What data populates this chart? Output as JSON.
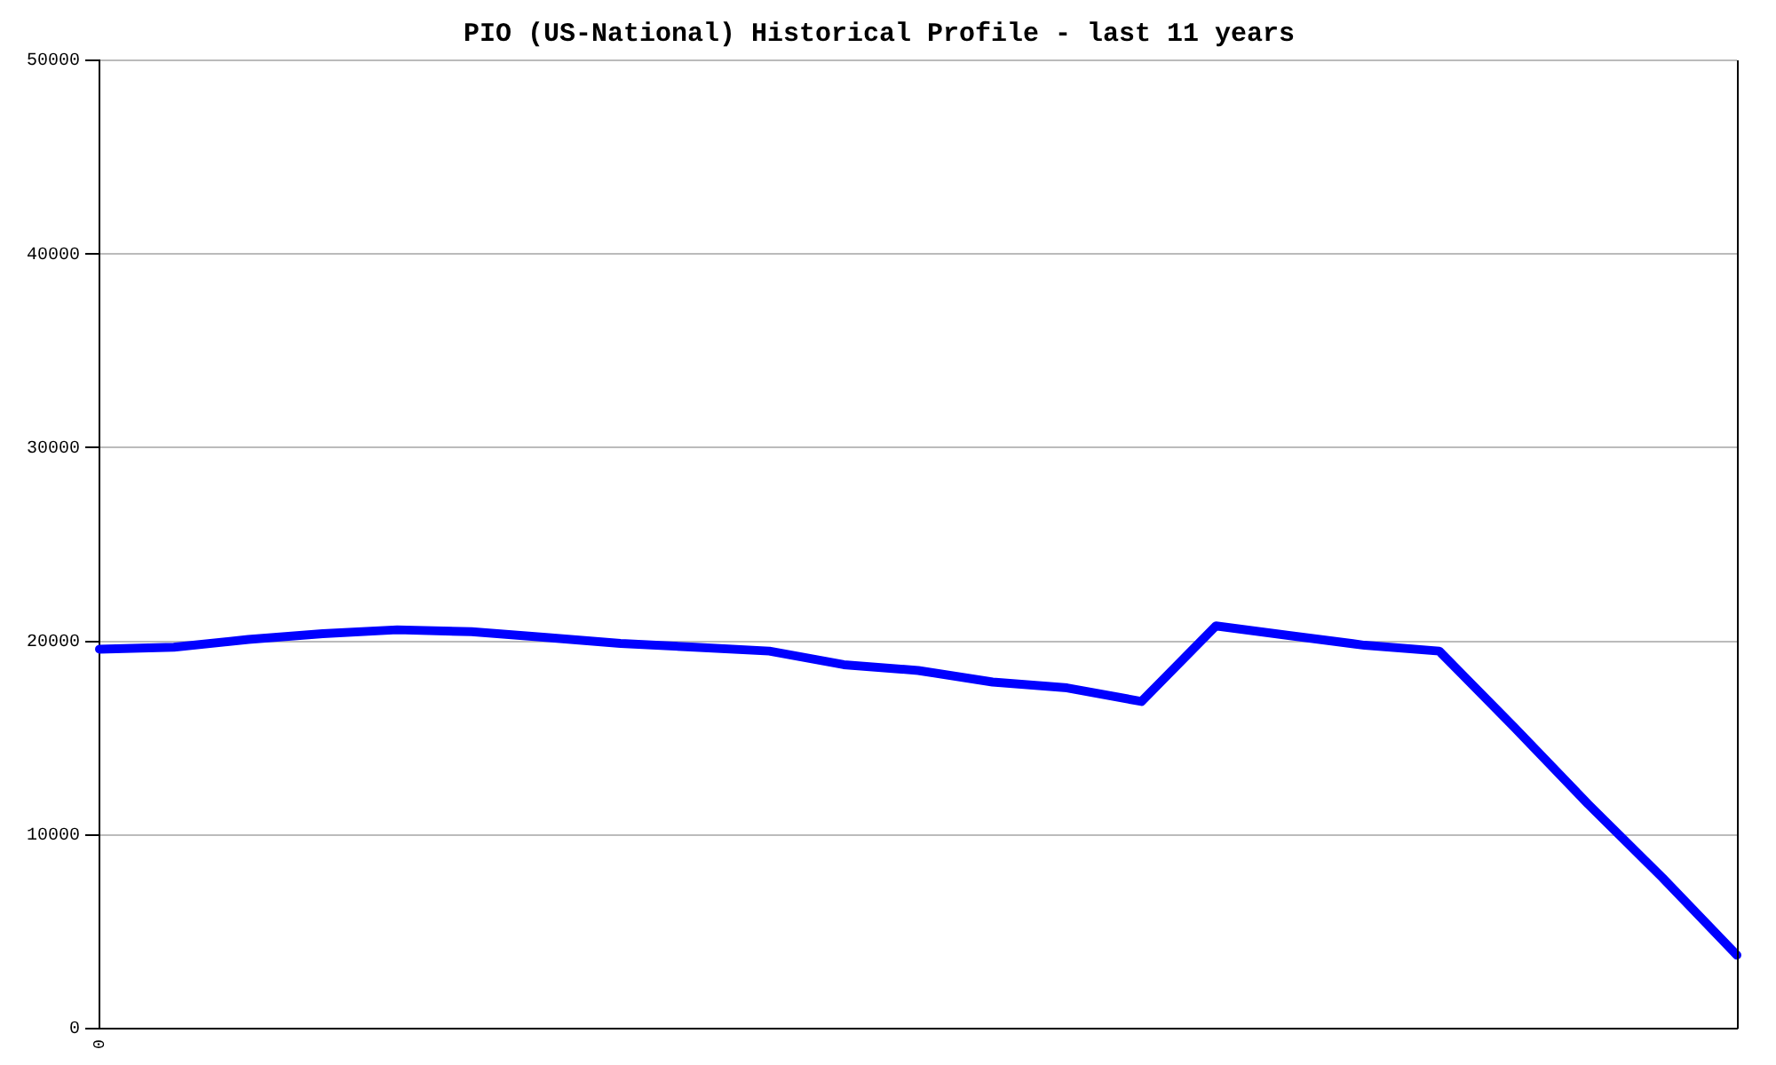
{
  "chart_data": {
    "type": "line",
    "title": "PIO (US-National) Historical Profile - last 11 years",
    "categories": [
      "0",
      null,
      null,
      null,
      null,
      null,
      null,
      null,
      null,
      null,
      null,
      null,
      null,
      null,
      null,
      null,
      null,
      null,
      null,
      null,
      null,
      null,
      null
    ],
    "series": [
      {
        "color": "#0000ff",
        "values": [
          19600,
          19700,
          20100,
          20400,
          20600,
          20500,
          20200,
          19900,
          19700,
          19500,
          18800,
          18500,
          17900,
          17600,
          16900,
          20800,
          20300,
          19800,
          19500,
          15600,
          11600,
          7800,
          3800
        ]
      }
    ],
    "ylim": [
      0,
      50000
    ],
    "yticks": [
      0,
      10000,
      20000,
      30000,
      40000,
      50000
    ],
    "grid": "y",
    "legend": false,
    "marker": "none",
    "line_style": "solid"
  }
}
